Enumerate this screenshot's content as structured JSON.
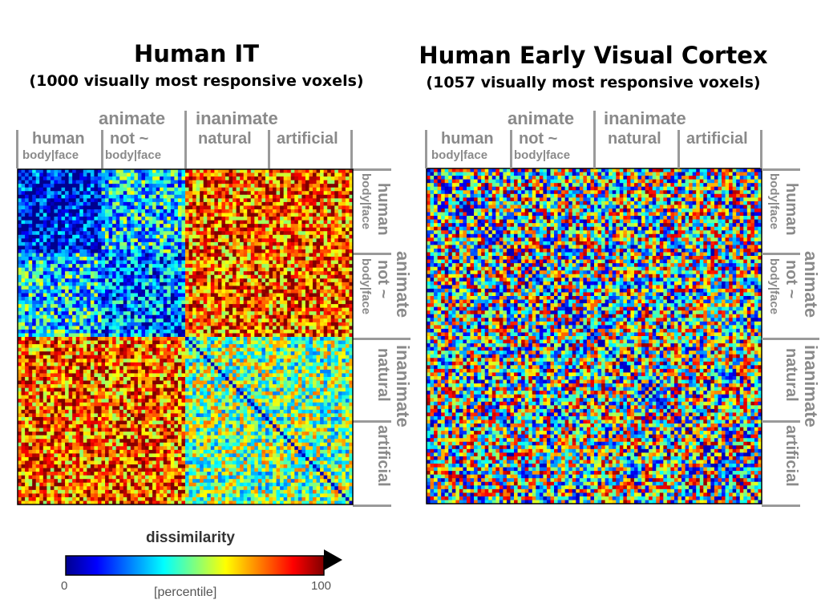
{
  "colors": {
    "label_gray": "#8a8a8a",
    "colormap": [
      "#00008f",
      "#0000ff",
      "#00ffff",
      "#ffff00",
      "#ff0000",
      "#800000"
    ]
  },
  "chart_data": [
    {
      "type": "heatmap",
      "title": "Human IT",
      "subtitle": "(1000 visually most responsive voxels)",
      "n": 92,
      "category_groups": [
        "animate",
        "inanimate"
      ],
      "categories": [
        "human body|face",
        "not ~ body|face",
        "natural",
        "artificial"
      ],
      "pattern": "categorical"
    },
    {
      "type": "heatmap",
      "title": "Human Early Visual Cortex",
      "subtitle": "(1057 visually most responsive voxels)",
      "n": 92,
      "category_groups": [
        "animate",
        "inanimate"
      ],
      "categories": [
        "human body|face",
        "not ~ body|face",
        "natural",
        "artificial"
      ],
      "pattern": "noisy"
    }
  ],
  "labels": {
    "animate": "animate",
    "inanimate": "inanimate",
    "human": "human",
    "not": "not ~",
    "natural": "natural",
    "artificial": "artificial",
    "bodyface": "body|face"
  },
  "colorbar": {
    "title": "dissimilarity",
    "unit": "[percentile]",
    "min": "0",
    "max": "100"
  }
}
